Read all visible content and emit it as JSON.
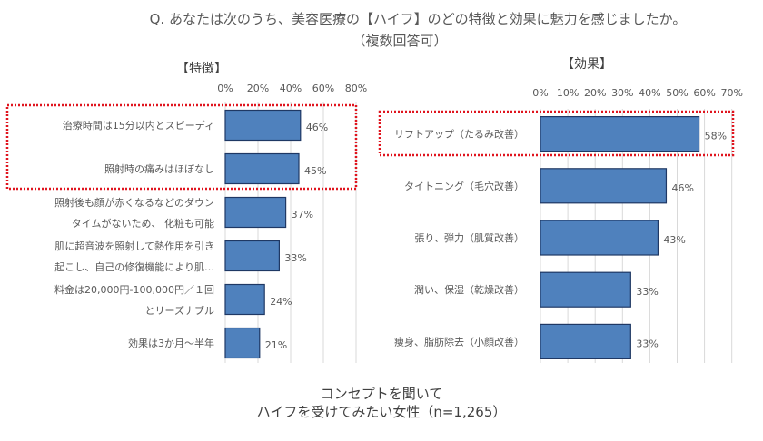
{
  "title": {
    "line1": "Q. あなたは次のうち、美容医療の【ハイフ】のどの特徴と効果に魅力を感じましたか。",
    "line2": "（複数回答可）"
  },
  "footer": {
    "line1": "コンセプトを聞いて",
    "line2": "ハイフを受けてみたい女性（n=1,265）"
  },
  "colors": {
    "bar_fill": "#4F81BD",
    "bar_stroke": "#1F3864",
    "highlight_box": "#E0141E",
    "gridline": "#D9D9D9",
    "text": "#595959"
  },
  "chart_data": [
    {
      "type": "bar",
      "orientation": "horizontal",
      "title": "【特徴】",
      "xlim": [
        0,
        80
      ],
      "ticks": [
        "0%",
        "20%",
        "40%",
        "60%",
        "80%"
      ],
      "tick_values": [
        0,
        20,
        40,
        60,
        80
      ],
      "grid": true,
      "categories": [
        [
          "治療時間は15分以内とスピーディ"
        ],
        [
          "照射時の痛みはほぼなし"
        ],
        [
          "照射後も顔が赤くなるなどのダウン",
          "タイムがないため、 化粧も可能"
        ],
        [
          "肌に超音波を照射して熱作用を引き",
          "起こし、自己の修復機能により肌…"
        ],
        [
          "料金は20,000円-100,000円／１回",
          "とリーズナブル"
        ],
        [
          "効果は3か月～半年"
        ]
      ],
      "values": [
        46,
        45,
        37,
        33,
        24,
        21
      ],
      "labels": [
        "46%",
        "45%",
        "37%",
        "33%",
        "24%",
        "21%"
      ],
      "highlighted": [
        0,
        1
      ]
    },
    {
      "type": "bar",
      "orientation": "horizontal",
      "title": "【効果】",
      "xlim": [
        0,
        70
      ],
      "ticks": [
        "0%",
        "10%",
        "20%",
        "30%",
        "40%",
        "50%",
        "60%",
        "70%"
      ],
      "tick_values": [
        0,
        10,
        20,
        30,
        40,
        50,
        60,
        70
      ],
      "grid": true,
      "categories": [
        [
          "リフトアップ（たるみ改善）"
        ],
        [
          "タイトニング（毛穴改善）"
        ],
        [
          "張り、弾力（肌質改善）"
        ],
        [
          "潤い、保湿（乾燥改善）"
        ],
        [
          "痩身、脂肪除去（小顔改善）"
        ]
      ],
      "values": [
        58,
        46,
        43,
        33,
        33
      ],
      "labels": [
        "58%",
        "46%",
        "43%",
        "33%",
        "33%"
      ],
      "highlighted": [
        0
      ]
    }
  ]
}
